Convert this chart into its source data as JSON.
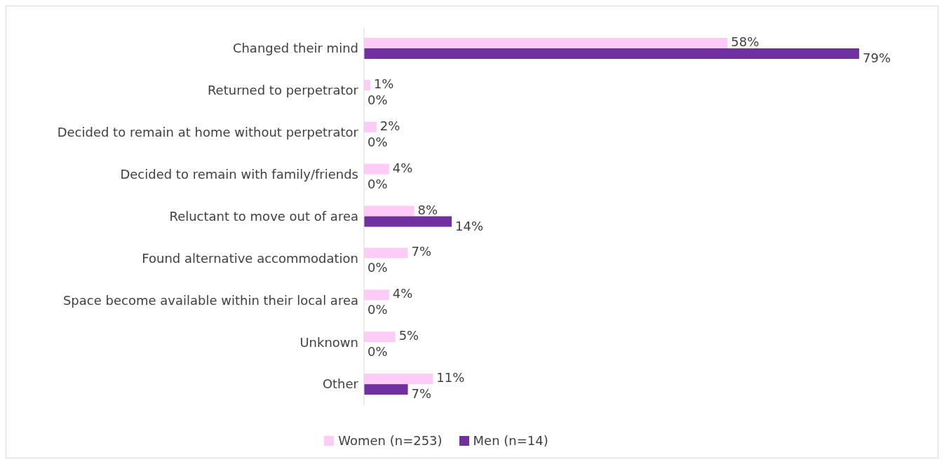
{
  "chart_data": {
    "type": "bar",
    "orientation": "horizontal",
    "categories": [
      "Changed their mind",
      "Returned to perpetrator",
      "Decided to remain at home without perpetrator",
      "Decided to remain with family/friends",
      "Reluctant to move out of area",
      "Found alternative accommodation",
      "Space become available within their local area",
      "Unknown",
      "Other"
    ],
    "series": [
      {
        "name": "Women (n=253)",
        "color": "#fccbf6",
        "values": [
          58,
          1,
          2,
          4,
          8,
          7,
          4,
          5,
          11
        ],
        "value_labels": [
          "58%",
          "1%",
          "2%",
          "4%",
          "8%",
          "7%",
          "4%",
          "5%",
          "11%"
        ]
      },
      {
        "name": "Men (n=14)",
        "color": "#7030a0",
        "values": [
          79,
          0,
          0,
          0,
          14,
          0,
          0,
          0,
          7
        ],
        "value_labels": [
          "79%",
          "0%",
          "0%",
          "0%",
          "14%",
          "0%",
          "0%",
          "0%",
          "7%"
        ]
      }
    ],
    "legend": "bottom"
  }
}
